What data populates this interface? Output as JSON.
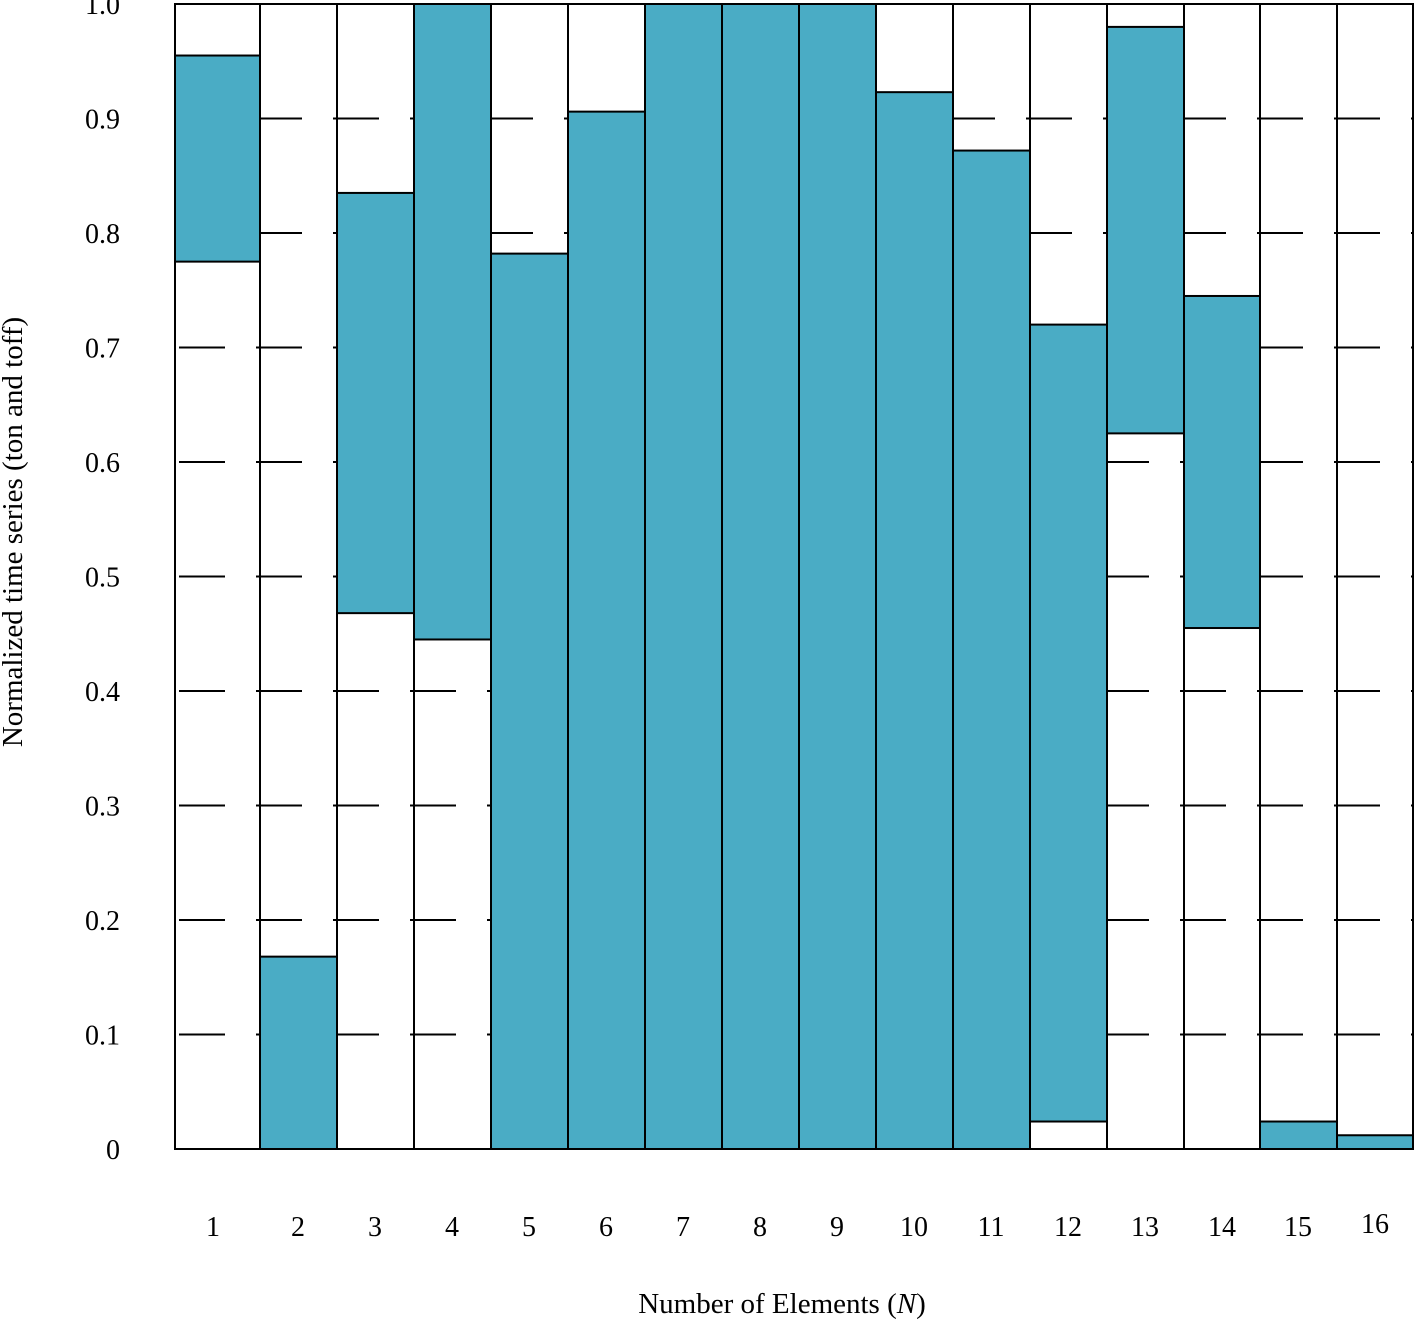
{
  "chart_data": {
    "type": "bar",
    "subtype": "floating-range",
    "title": "",
    "xlabel_text": "Number of Elements (",
    "xlabel_var": "N",
    "xlabel_close": ")",
    "ylabel": "Normalized time series (ton and toff)",
    "categories": [
      "1",
      "2",
      "3",
      "4",
      "5",
      "6",
      "7",
      "8",
      "9",
      "10",
      "11",
      "12",
      "13",
      "14",
      "15",
      "16"
    ],
    "series": [
      {
        "fields": [
          "t_on",
          "t_off"
        ],
        "ranges": [
          [
            0.775,
            0.955
          ],
          [
            0.0,
            0.168
          ],
          [
            0.468,
            0.835
          ],
          [
            0.445,
            1.0
          ],
          [
            0.0,
            0.782
          ],
          [
            0.0,
            0.906
          ],
          [
            0.0,
            1.0
          ],
          [
            0.0,
            1.0
          ],
          [
            0.0,
            1.0
          ],
          [
            0.0,
            0.923
          ],
          [
            0.0,
            0.872
          ],
          [
            0.024,
            0.72
          ],
          [
            0.625,
            0.98
          ],
          [
            0.455,
            0.745
          ],
          [
            0.0,
            0.024
          ],
          [
            0.0,
            0.012
          ]
        ]
      }
    ],
    "ylim": [
      0,
      1.0
    ],
    "yticks": [
      "0",
      "0.1",
      "0.2",
      "0.3",
      "0.4",
      "0.5",
      "0.6",
      "0.7",
      "0.8",
      "0.9",
      "1.0"
    ],
    "grid": "horizontal dashed",
    "legend": "none",
    "colors": {
      "bar_fill": "#4AACC5",
      "bar_stroke": "#000000",
      "grid": "#000000",
      "background": "#FFFFFF"
    }
  }
}
